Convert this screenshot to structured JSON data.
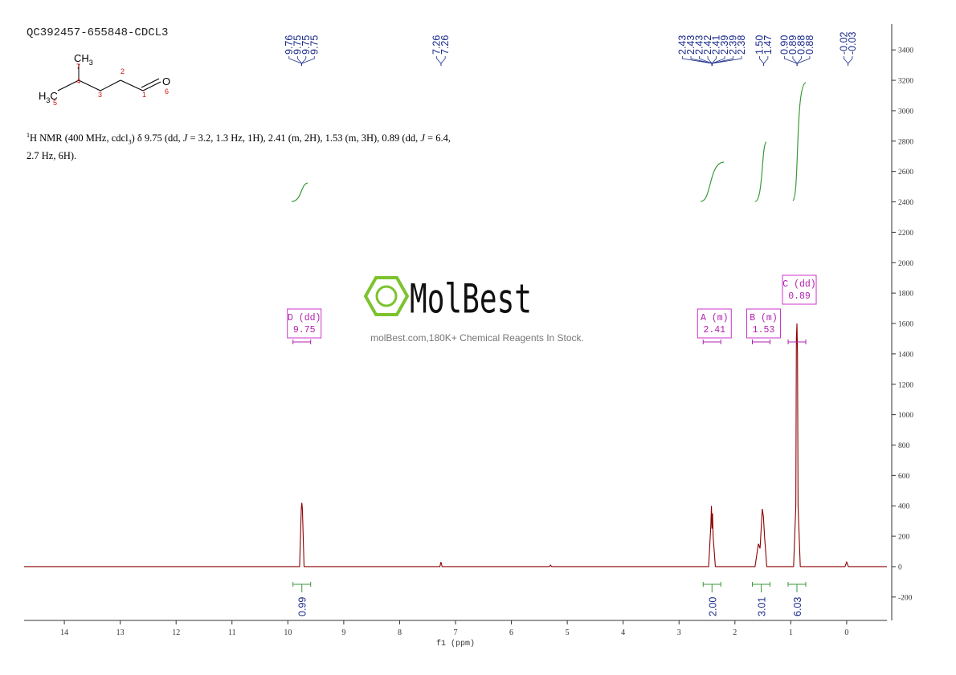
{
  "title": "QC392457-655848-CDCL3",
  "structure": {
    "groups": [
      {
        "text": "CH",
        "sub": "3"
      },
      {
        "text": "H",
        "sub": "3",
        "tail": "C"
      },
      {
        "text": "O"
      }
    ],
    "atom_numbers": [
      "7",
      "4",
      "2",
      "3",
      "1",
      "5",
      "6"
    ]
  },
  "description": {
    "line1": [
      "1",
      "H NMR (400 MHz, cdcl",
      "3",
      ") δ 9.75 (dd, ",
      "J",
      " = 3.2, 1.3 Hz, 1H), 2.41 (m, 2H), 1.53 (m, 3H), 0.89 (dd, ",
      "J",
      " = 6.4,"
    ],
    "line2": "2.7 Hz, 6H)."
  },
  "watermark": {
    "brand": "MolBest",
    "tagline": "molBest.com,180K+ Chemical Reagents In Stock."
  },
  "chart_data": {
    "type": "line",
    "x_label": "f1 (ppm)",
    "xlim": [
      14.72,
      -0.72
    ],
    "xticks": [
      14,
      13,
      12,
      11,
      10,
      9,
      8,
      7,
      6,
      5,
      4,
      3,
      2,
      1,
      0
    ],
    "ylim": [
      -354,
      3570
    ],
    "yticks": [
      -200,
      0,
      200,
      400,
      600,
      800,
      1000,
      1200,
      1400,
      1600,
      1800,
      2000,
      2200,
      2400,
      2600,
      2800,
      3000,
      3200,
      3400
    ],
    "series": [
      {
        "color": "#8b0000",
        "x": [
          14.72,
          9.79,
          9.76,
          9.75,
          9.74,
          9.71,
          7.28,
          7.26,
          7.24,
          5.32,
          5.3,
          5.28,
          2.47,
          2.43,
          2.42,
          2.41,
          2.4,
          2.39,
          2.35,
          1.64,
          1.58,
          1.55,
          1.53,
          1.51,
          1.49,
          1.47,
          1.43,
          0.95,
          0.91,
          0.9,
          0.89,
          0.88,
          0.87,
          0.83,
          0.03,
          0.0,
          -0.03,
          -0.72
        ],
        "values": [
          0,
          0,
          380,
          420,
          380,
          0,
          0,
          30,
          0,
          0,
          10,
          0,
          0,
          280,
          400,
          250,
          350,
          200,
          0,
          0,
          150,
          120,
          250,
          380,
          330,
          200,
          0,
          0,
          400,
          1500,
          1600,
          1400,
          400,
          0,
          0,
          30,
          0,
          0
        ]
      }
    ],
    "peak_labels": [
      [
        "9.76",
        "9.75",
        "9.75",
        "9.75"
      ],
      [
        "7.26",
        "7.26"
      ],
      [
        "2.43",
        "2.43",
        "2.43",
        "2.42",
        "2.41",
        "2.39",
        "2.39",
        "2.38"
      ],
      [
        "1.50",
        "1.47"
      ],
      [
        "0.90",
        "0.89",
        "0.88",
        "0.88"
      ],
      [
        "-0.02",
        "-0.03"
      ]
    ],
    "multiplets": [
      {
        "label": "D (dd)",
        "shift": "9.75"
      },
      {
        "label": "A (m)",
        "shift": "2.41"
      },
      {
        "label": "B (m)",
        "shift": "1.53"
      },
      {
        "label": "C (dd)",
        "shift": "0.89"
      }
    ],
    "integrals": [
      "0.99",
      "2.00",
      "3.01",
      "6.03"
    ]
  }
}
